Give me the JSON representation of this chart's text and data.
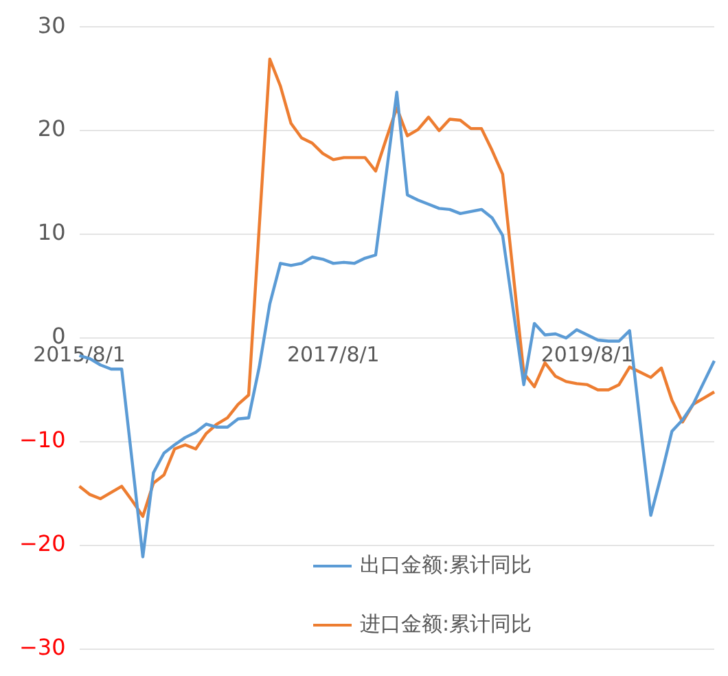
{
  "chart_data": {
    "type": "line",
    "categories": [
      "2015/8/1",
      null,
      null,
      null,
      null,
      null,
      null,
      null,
      null,
      null,
      null,
      null,
      null,
      null,
      null,
      null,
      null,
      null,
      null,
      null,
      null,
      null,
      null,
      null,
      "2017/8/1",
      null,
      null,
      null,
      null,
      null,
      null,
      null,
      null,
      null,
      null,
      null,
      null,
      null,
      null,
      null,
      null,
      null,
      null,
      null,
      null,
      null,
      null,
      null,
      "2019/8/1",
      null,
      null,
      null,
      null,
      null,
      null,
      null,
      null,
      null,
      null,
      null,
      null
    ],
    "series": [
      {
        "name": "出口金额:累计同比",
        "color": "#5b9bd5",
        "values": [
          -1.7,
          -2.0,
          -2.6,
          -3.0,
          -3.0,
          -12.0,
          -21.1,
          -13.0,
          -11.1,
          -10.3,
          -9.6,
          -9.1,
          -8.3,
          -8.6,
          -8.6,
          -7.8,
          -7.7,
          -2.8,
          3.3,
          7.2,
          7.0,
          7.2,
          7.8,
          7.6,
          7.2,
          7.3,
          7.2,
          7.7,
          8.0,
          15.8,
          23.7,
          13.8,
          13.3,
          12.9,
          12.5,
          12.4,
          12.0,
          12.2,
          12.4,
          11.6,
          9.9,
          2.7,
          -4.5,
          1.4,
          0.3,
          0.4,
          0.0,
          0.8,
          0.3,
          -0.2,
          -0.3,
          -0.3,
          0.7,
          -8.2,
          -17.1,
          -13.2,
          -9.0,
          -7.9,
          -6.4,
          -4.3,
          -2.2
        ]
      },
      {
        "name": "进口金额:累计同比",
        "color": "#ed7d31",
        "values": [
          -14.3,
          -15.1,
          -15.5,
          -14.9,
          -14.3,
          -15.7,
          -17.2,
          -14.0,
          -13.2,
          -10.7,
          -10.3,
          -10.7,
          -9.2,
          -8.3,
          -7.7,
          -6.4,
          -5.5,
          10.7,
          26.9,
          24.3,
          20.7,
          19.3,
          18.8,
          17.8,
          17.2,
          17.4,
          17.4,
          17.4,
          16.1,
          19.2,
          22.2,
          19.5,
          20.1,
          21.3,
          20.0,
          21.1,
          21.0,
          20.2,
          20.2,
          18.1,
          15.8,
          6.2,
          -3.4,
          -4.7,
          -2.4,
          -3.7,
          -4.2,
          -4.4,
          -4.5,
          -5.0,
          -5.0,
          -4.5,
          -2.8,
          -3.3,
          -3.8,
          -2.9,
          -6.0,
          -8.1,
          -6.4,
          -5.8,
          -5.2
        ]
      }
    ],
    "ylim": [
      -30,
      30
    ],
    "yticks": [
      -30,
      -20,
      -10,
      0,
      10,
      20,
      30
    ],
    "grid": "y",
    "legend": "bottom",
    "marker": "none",
    "line_style": "solid"
  }
}
